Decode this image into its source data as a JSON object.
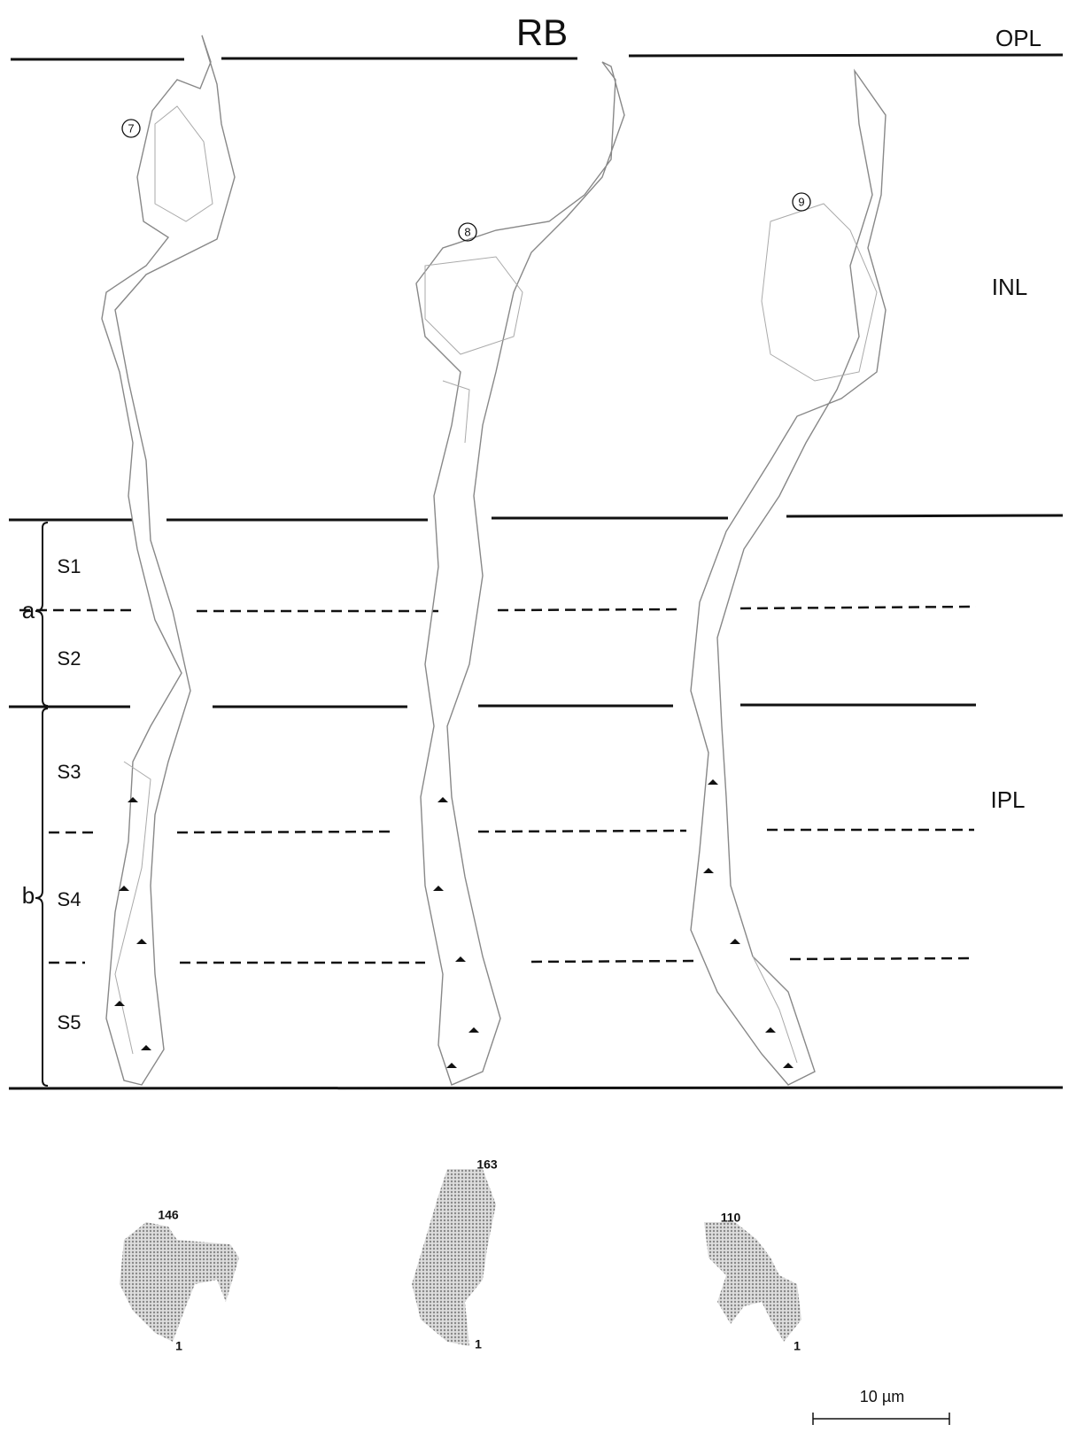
{
  "title": "RB",
  "layers": {
    "opl": "OPL",
    "inl": "INL",
    "ipl": "IPL"
  },
  "sublaminae": {
    "a": "a",
    "b": "b"
  },
  "strata": [
    "S1",
    "S2",
    "S3",
    "S4",
    "S5"
  ],
  "cells": [
    {
      "id": "7",
      "top": "146",
      "bottom": "1"
    },
    {
      "id": "8",
      "top": "163",
      "bottom": "1"
    },
    {
      "id": "9",
      "top": "110",
      "bottom": "1"
    }
  ],
  "scale_bar": "10 µm"
}
